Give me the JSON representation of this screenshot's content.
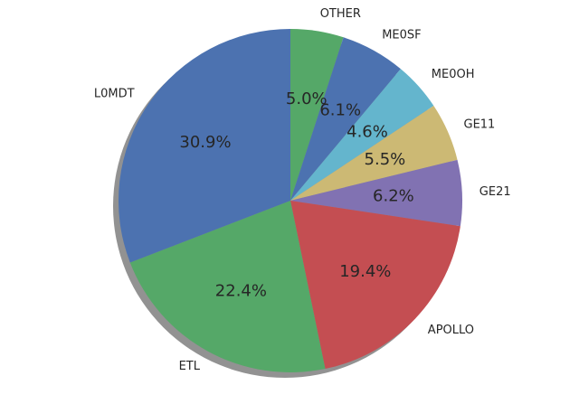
{
  "chart_data": {
    "type": "pie",
    "title": "",
    "start_angle_deg": 90,
    "direction": "clockwise",
    "shadow": true,
    "slices": [
      {
        "label": "OTHER",
        "value": 5.0,
        "pct_label": "5.0%",
        "color": "#55a868"
      },
      {
        "label": "ME0SF",
        "value": 6.1,
        "pct_label": "6.1%",
        "color": "#4c72b0"
      },
      {
        "label": "ME0OH",
        "value": 4.6,
        "pct_label": "4.6%",
        "color": "#64b5cd"
      },
      {
        "label": "GE11",
        "value": 5.5,
        "pct_label": "5.5%",
        "color": "#ccb974"
      },
      {
        "label": "GE21",
        "value": 6.2,
        "pct_label": "6.2%",
        "color": "#8172b2"
      },
      {
        "label": "APOLLO",
        "value": 19.4,
        "pct_label": "19.4%",
        "color": "#c44e52"
      },
      {
        "label": "ETL",
        "value": 22.4,
        "pct_label": "22.4%",
        "color": "#55a868"
      },
      {
        "label": "L0MDT",
        "value": 30.9,
        "pct_label": "30.9%",
        "color": "#4c72b0"
      }
    ]
  }
}
